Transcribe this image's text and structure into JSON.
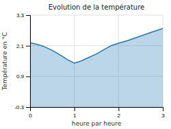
{
  "chart_data": {
    "type": "area",
    "title": "Evolution de la température",
    "xlabel": "heure par heure",
    "ylabel": "Température en °C",
    "x": [
      0,
      0.15,
      0.3,
      0.5,
      0.7,
      0.85,
      1.0,
      1.15,
      1.3,
      1.5,
      1.7,
      1.85,
      2.0,
      2.2,
      2.4,
      2.6,
      2.8,
      3.0
    ],
    "values": [
      2.22,
      2.16,
      2.08,
      1.92,
      1.72,
      1.55,
      1.42,
      1.5,
      1.62,
      1.78,
      1.98,
      2.12,
      2.2,
      2.3,
      2.42,
      2.54,
      2.66,
      2.78
    ],
    "xlim": [
      0,
      3
    ],
    "ylim": [
      -0.3,
      3.3
    ],
    "xticks": [
      0,
      1,
      2,
      3
    ],
    "yticks": [
      -0.3,
      0.9,
      2.1,
      3.3
    ],
    "grid": true
  }
}
